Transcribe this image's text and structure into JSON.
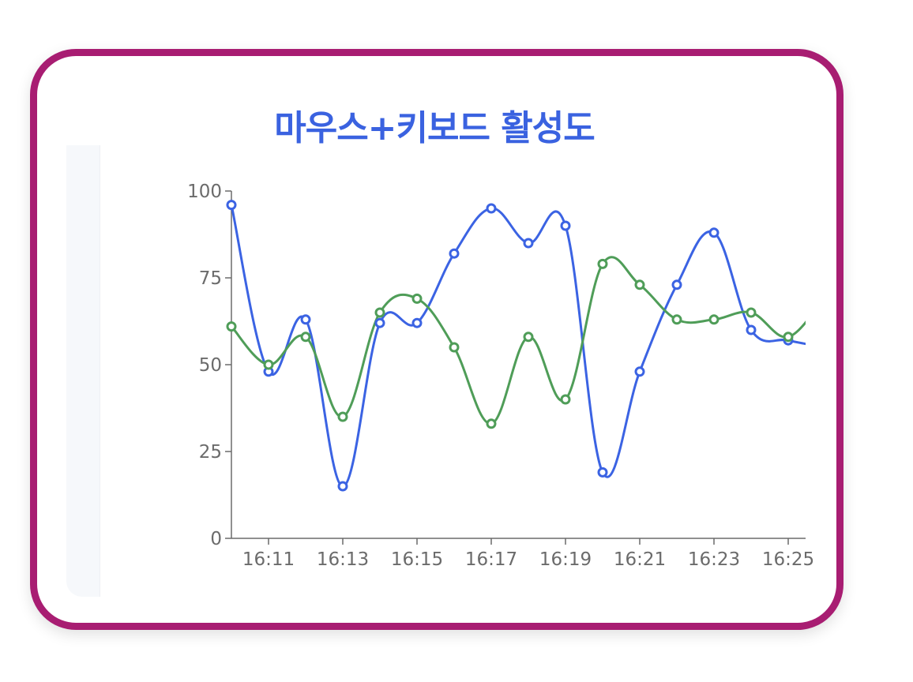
{
  "title": "마우스+키보드 활성도",
  "colors": {
    "border": "#a81d72",
    "title": "#3a62e0",
    "series_blue": "#3b63e3",
    "series_green": "#4f9d58",
    "axis": "#6b6b6b"
  },
  "chart_data": {
    "type": "line",
    "title": "마우스+키보드 활성도",
    "xlabel": "",
    "ylabel": "",
    "x": [
      "16:10",
      "16:11",
      "16:12",
      "16:13",
      "16:14",
      "16:15",
      "16:16",
      "16:17",
      "16:18",
      "16:19",
      "16:20",
      "16:21",
      "16:22",
      "16:23",
      "16:24",
      "16:25",
      "16:26"
    ],
    "x_tick_labels": [
      "16:11",
      "16:13",
      "16:15",
      "16:17",
      "16:19",
      "16:21",
      "16:23",
      "16:25"
    ],
    "y_ticks": [
      0,
      25,
      50,
      75,
      100
    ],
    "ylim": [
      0,
      100
    ],
    "grid": false,
    "series": [
      {
        "color": "#3b63e3",
        "values": [
          96,
          48,
          63,
          15,
          62,
          62,
          82,
          95,
          85,
          90,
          19,
          48,
          73,
          88,
          60,
          57,
          55
        ]
      },
      {
        "color": "#4f9d58",
        "values": [
          61,
          50,
          58,
          35,
          65,
          69,
          55,
          33,
          58,
          40,
          79,
          73,
          63,
          63,
          65,
          58,
          70
        ]
      }
    ]
  }
}
